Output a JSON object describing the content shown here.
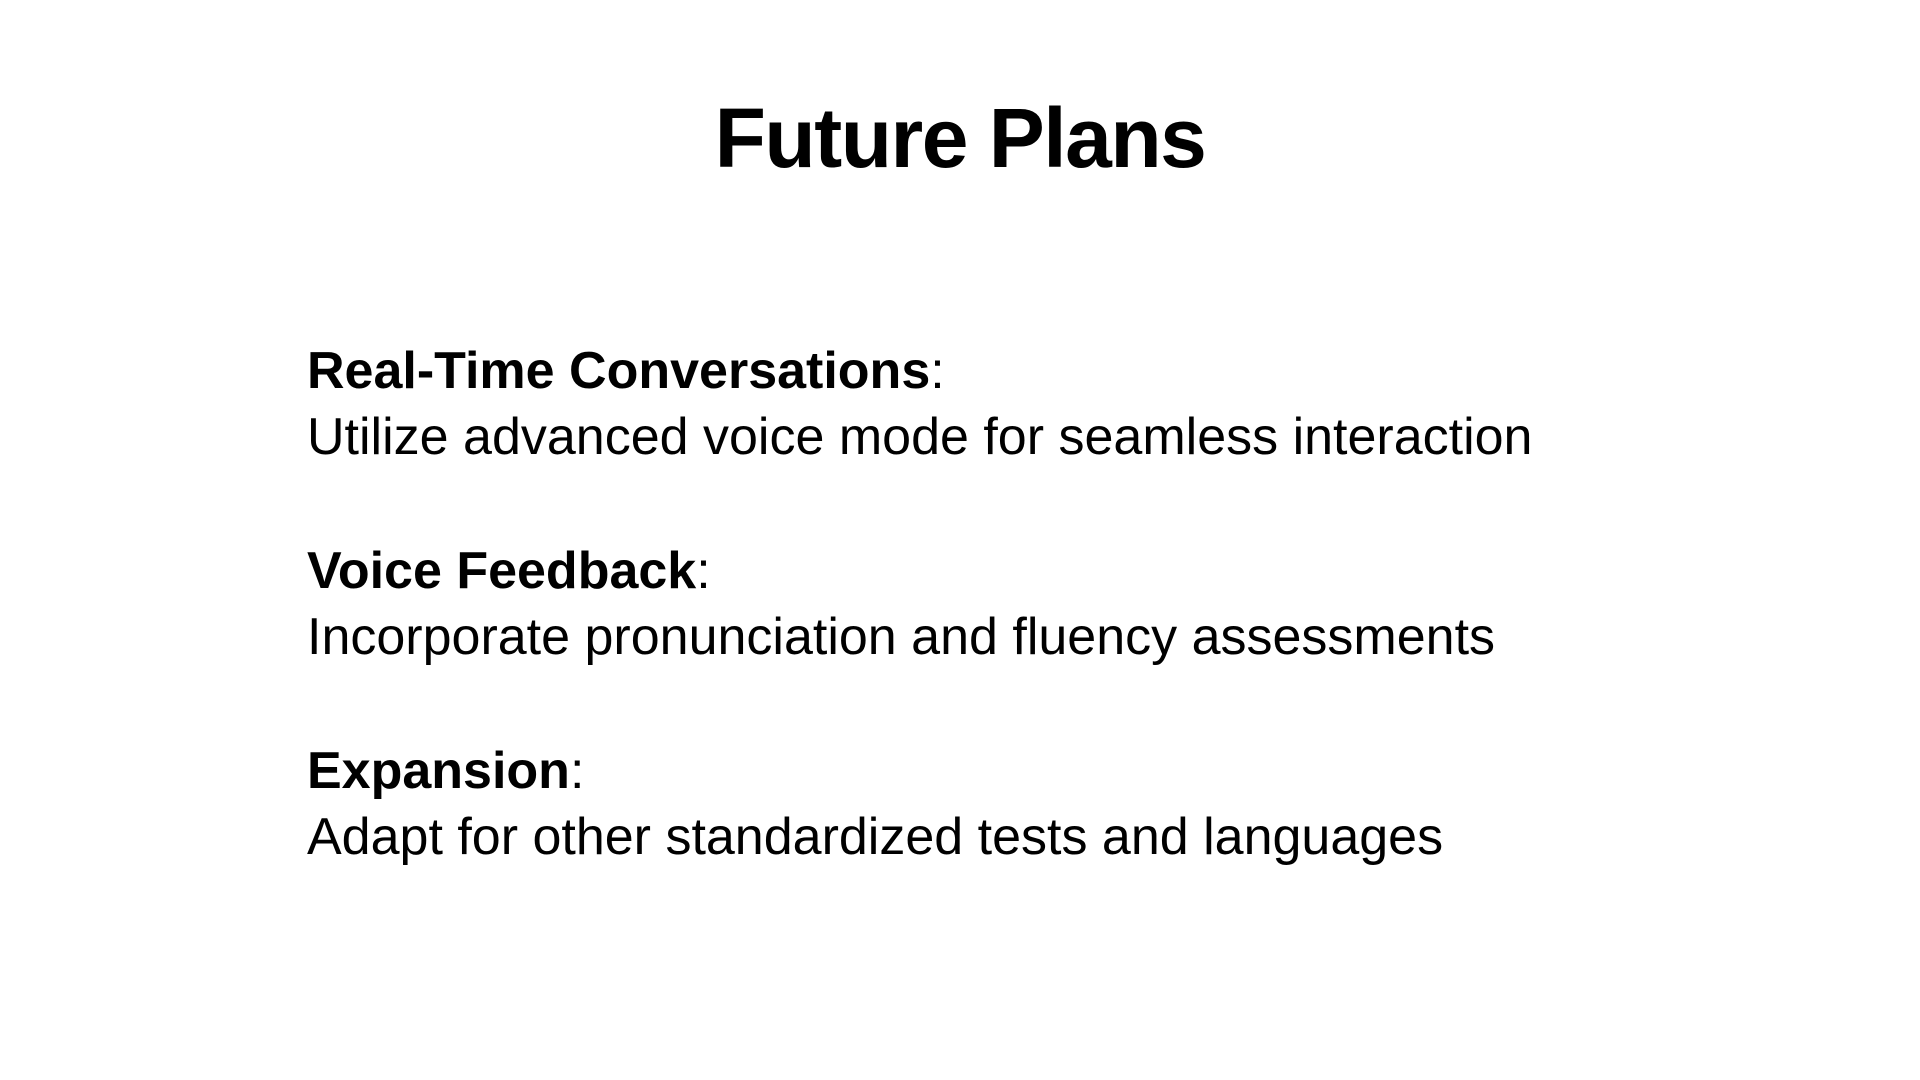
{
  "slide": {
    "title": "Future Plans",
    "items": [
      {
        "heading": "Real-Time Conversations",
        "separator": ":",
        "description": "Utilize advanced voice mode for seamless interaction"
      },
      {
        "heading": "Voice Feedback",
        "separator": ":",
        "description": "Incorporate pronunciation and fluency assessments"
      },
      {
        "heading": "Expansion",
        "separator": ":",
        "description": "Adapt for other standardized tests and languages"
      }
    ]
  }
}
